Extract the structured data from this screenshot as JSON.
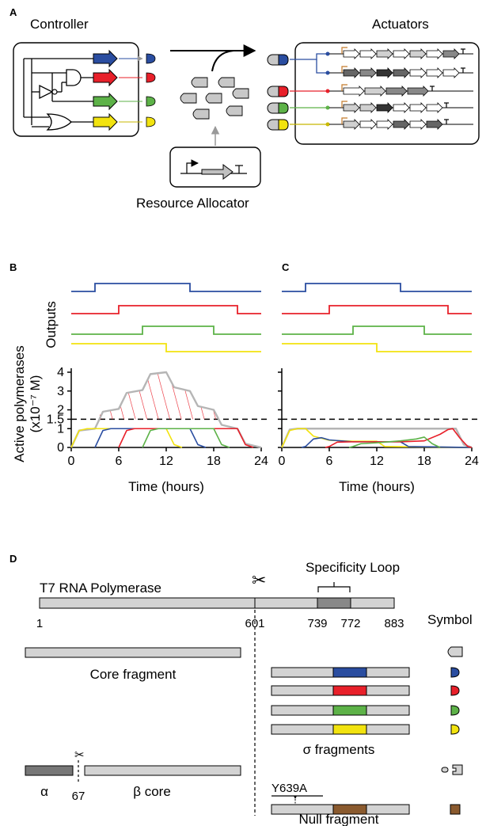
{
  "panels": {
    "a": "A",
    "b": "B",
    "c": "C",
    "d": "D"
  },
  "panel_a": {
    "controller_label": "Controller",
    "actuators_label": "Actuators",
    "resource_allocator_label": "Resource Allocator"
  },
  "panel_bc": {
    "outputs_label": "Outputs",
    "ylabel_line1": "Active polymerases",
    "ylabel_line2": "(x10⁻⁷ M)",
    "xlabel": "Time (hours)",
    "x_ticks": [
      "0",
      "6",
      "12",
      "18",
      "24"
    ],
    "y_ticks": [
      "0",
      "1",
      "1.5",
      "2",
      "3",
      "4"
    ]
  },
  "panel_d": {
    "title": "T7 RNA Polymerase",
    "specificity_loop_label": "Specificity Loop",
    "positions": [
      "1",
      "601",
      "739",
      "772",
      "883"
    ],
    "symbol_header": "Symbol",
    "core_fragment_label": "Core fragment",
    "sigma_fragments_label": "σ fragments",
    "alpha_label": "α",
    "alpha_split": "67",
    "beta_core_label": "β core",
    "mutation_label": "Y639A",
    "null_fragment_label": "Null fragment"
  },
  "colors": {
    "blue": "#2a4da0",
    "red": "#e8202a",
    "green": "#5db248",
    "yellow": "#f2e30f",
    "gray": "#d3d3d3",
    "dark_gray": "#777777",
    "brown": "#8a5a2e"
  },
  "chart_data": [
    {
      "type": "line",
      "panel": "B",
      "xlabel": "Time (hours)",
      "ylabel": "Active polymerases (x10⁻⁷ M)",
      "xlim": [
        0,
        24
      ],
      "ylim": [
        0,
        4
      ],
      "threshold": 1.5,
      "outputs": [
        {
          "color": "blue",
          "on": [
            3,
            15
          ]
        },
        {
          "color": "red",
          "on": [
            6,
            21
          ]
        },
        {
          "color": "green",
          "on": [
            9,
            18
          ]
        },
        {
          "color": "yellow",
          "on": [
            0,
            12
          ]
        }
      ],
      "series": [
        {
          "color": "gray",
          "x": [
            0,
            1,
            3,
            4,
            6,
            7,
            9,
            10,
            12,
            13,
            15,
            16,
            18,
            19,
            21,
            22,
            24
          ],
          "y": [
            0,
            0.9,
            1,
            1.9,
            2.05,
            2.9,
            3.05,
            3.9,
            4,
            3.2,
            3.0,
            2.2,
            2.0,
            1.2,
            1.0,
            0.2,
            0
          ]
        },
        {
          "color": "yellow",
          "x": [
            0,
            1,
            2,
            12,
            13,
            14
          ],
          "y": [
            0,
            0.9,
            1,
            1,
            0.15,
            0
          ]
        },
        {
          "color": "blue",
          "x": [
            3,
            4,
            5,
            15,
            16,
            17
          ],
          "y": [
            0,
            0.9,
            1,
            1,
            0.15,
            0
          ]
        },
        {
          "color": "red",
          "x": [
            6,
            7,
            8,
            21,
            22,
            23
          ],
          "y": [
            0,
            0.9,
            1,
            1,
            0.15,
            0
          ]
        },
        {
          "color": "green",
          "x": [
            9,
            10,
            11,
            18,
            19,
            20
          ],
          "y": [
            0,
            0.9,
            1,
            1,
            0.15,
            0
          ]
        }
      ]
    },
    {
      "type": "line",
      "panel": "C",
      "xlabel": "Time (hours)",
      "xlim": [
        0,
        24
      ],
      "ylim": [
        0,
        4
      ],
      "threshold": 1.5,
      "outputs": [
        {
          "color": "blue",
          "on": [
            3,
            15
          ]
        },
        {
          "color": "red",
          "on": [
            6,
            21
          ]
        },
        {
          "color": "green",
          "on": [
            9,
            18
          ]
        },
        {
          "color": "yellow",
          "on": [
            0,
            12
          ]
        }
      ],
      "series": [
        {
          "color": "gray",
          "x": [
            0,
            1,
            2,
            22,
            23,
            24
          ],
          "y": [
            0,
            0.95,
            1,
            1,
            0.15,
            0
          ]
        },
        {
          "color": "yellow",
          "x": [
            0,
            1,
            2,
            3,
            4,
            6,
            9,
            12,
            13,
            24
          ],
          "y": [
            0,
            0.9,
            1,
            1,
            0.6,
            0.38,
            0.33,
            0.33,
            0.05,
            0
          ]
        },
        {
          "color": "blue",
          "x": [
            2.5,
            3,
            4,
            5,
            6,
            9,
            12,
            15,
            16,
            24
          ],
          "y": [
            0,
            0.05,
            0.45,
            0.52,
            0.4,
            0.3,
            0.3,
            0.3,
            0.05,
            0
          ]
        },
        {
          "color": "red",
          "x": [
            5.5,
            6,
            7,
            9,
            12,
            15,
            18,
            20,
            21,
            21.6,
            22.5,
            23.5,
            24
          ],
          "y": [
            0,
            0.05,
            0.28,
            0.3,
            0.3,
            0.3,
            0.35,
            0.7,
            0.95,
            1.0,
            0.5,
            0.05,
            0
          ]
        },
        {
          "color": "green",
          "x": [
            8.5,
            9,
            10,
            12,
            15,
            17,
            18,
            19,
            20
          ],
          "y": [
            0,
            0.05,
            0.2,
            0.25,
            0.35,
            0.45,
            0.55,
            0.2,
            0
          ]
        }
      ]
    }
  ]
}
